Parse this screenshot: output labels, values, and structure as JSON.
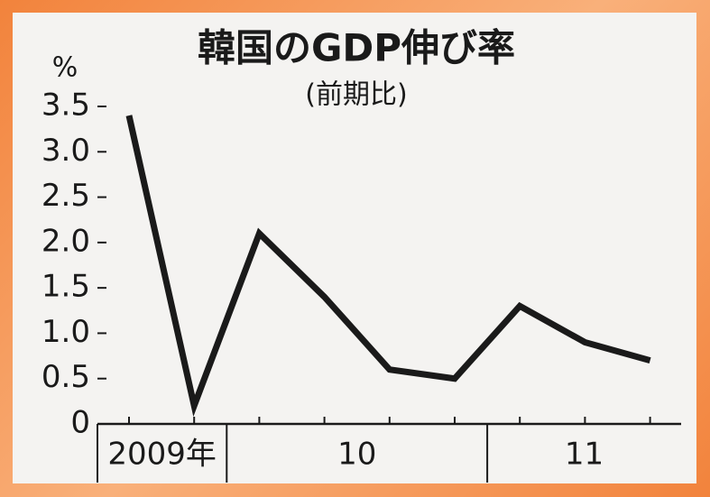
{
  "chart_data": {
    "type": "line",
    "title": "韓国のGDP伸び率",
    "subtitle": "(前期比)",
    "y_unit": "%",
    "categories": [
      null,
      null,
      null,
      null,
      null,
      null,
      null,
      null,
      null
    ],
    "groups": [
      {
        "label": "2009年",
        "count": 2
      },
      {
        "label": "10",
        "count": 4
      },
      {
        "label": "11",
        "count": 3
      }
    ],
    "values": [
      3.4,
      0.2,
      2.1,
      1.4,
      0.6,
      0.5,
      1.3,
      0.9,
      0.7
    ],
    "color": "#1a1a1a",
    "ylim": [
      0,
      3.5
    ],
    "yticks": [
      {
        "value": 0,
        "label": "0"
      },
      0.5,
      {
        "value": 1,
        "label": "1.0"
      },
      1.5,
      {
        "value": 2,
        "label": "2.0"
      },
      2.5,
      {
        "value": 3,
        "label": "3.0"
      },
      3.5
    ]
  }
}
